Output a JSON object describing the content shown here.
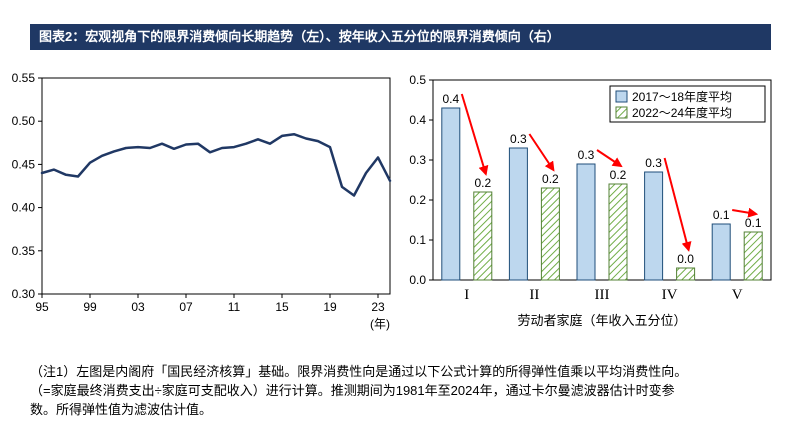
{
  "banner": {
    "title": "图表2：宏观视角下的限界消费倾向长期趋势（左）、按年收入五分位的限界消费倾向（右）"
  },
  "colors": {
    "banner_bg": "#1F3864",
    "banner_text": "#FFFFFF",
    "line": "#203864",
    "bar_blue_fill": "#BDD7EE",
    "bar_blue_border": "#1F4E79",
    "bar_green_hatch": "#70AD47",
    "bar_green_border": "#538135",
    "arrow": "#FF0000",
    "axis": "#000000"
  },
  "chart_data": [
    {
      "type": "line",
      "title": "宏观视角下的限界消费倾向长期趋势",
      "x": [
        1995,
        1996,
        1997,
        1998,
        1999,
        2000,
        2001,
        2002,
        2003,
        2004,
        2005,
        2006,
        2007,
        2008,
        2009,
        2010,
        2011,
        2012,
        2013,
        2014,
        2015,
        2016,
        2017,
        2018,
        2019,
        2020,
        2021,
        2022,
        2023,
        2024
      ],
      "values": [
        0.44,
        0.444,
        0.438,
        0.436,
        0.452,
        0.46,
        0.465,
        0.469,
        0.47,
        0.469,
        0.474,
        0.468,
        0.473,
        0.474,
        0.464,
        0.469,
        0.47,
        0.474,
        0.479,
        0.474,
        0.483,
        0.485,
        0.48,
        0.477,
        0.47,
        0.424,
        0.414,
        0.44,
        0.458,
        0.431
      ],
      "ylim": [
        0.3,
        0.55
      ],
      "yticks": [
        "0.30",
        "0.35",
        "0.40",
        "0.45",
        "0.50",
        "0.55"
      ],
      "xtick_labels": [
        "95",
        "99",
        "03",
        "07",
        "11",
        "15",
        "19",
        "23"
      ],
      "xtick_years": [
        1995,
        1999,
        2003,
        2007,
        2011,
        2015,
        2019,
        2023
      ],
      "x_unit": "(年)",
      "grid": false,
      "legend": "none"
    },
    {
      "type": "bar",
      "title": "按年收入五分位的限界消费倾向",
      "categories": [
        "I",
        "II",
        "III",
        "IV",
        "V"
      ],
      "series": [
        {
          "name": "2017～18年度平均",
          "values": [
            0.43,
            0.33,
            0.29,
            0.27,
            0.14
          ],
          "labels": [
            "0.4",
            "0.3",
            "0.3",
            "0.3",
            "0.1"
          ],
          "style": "solid-blue"
        },
        {
          "name": "2022～24年度平均",
          "values": [
            0.22,
            0.23,
            0.24,
            0.03,
            0.12
          ],
          "labels": [
            "0.2",
            "0.2",
            "0.2",
            "0.0",
            "0.1"
          ],
          "style": "green-hatch"
        }
      ],
      "ylim": [
        0.0,
        0.5
      ],
      "yticks": [
        "0.0",
        "0.1",
        "0.2",
        "0.3",
        "0.4",
        "0.5"
      ],
      "xlabel": "劳动者家庭（年收入五分位）",
      "legend_position": "top-right",
      "grid": false,
      "annotation": "red decline arrows from 2017-18 bar to 2022-24 bar in each quintile"
    }
  ],
  "notes": {
    "line1": "（注1）左图是内阁府「国民经济核算」基础。限界消费性向是通过以下公式计算的所得弹性值乘以平均消费性向。",
    "line2": "（=家庭最终消费支出÷家庭可支配收入）进行计算。推测期间为1981年至2024年，通过卡尔曼滤波器估计时变参",
    "line3": "数。所得弹性值为滤波估计值。"
  }
}
